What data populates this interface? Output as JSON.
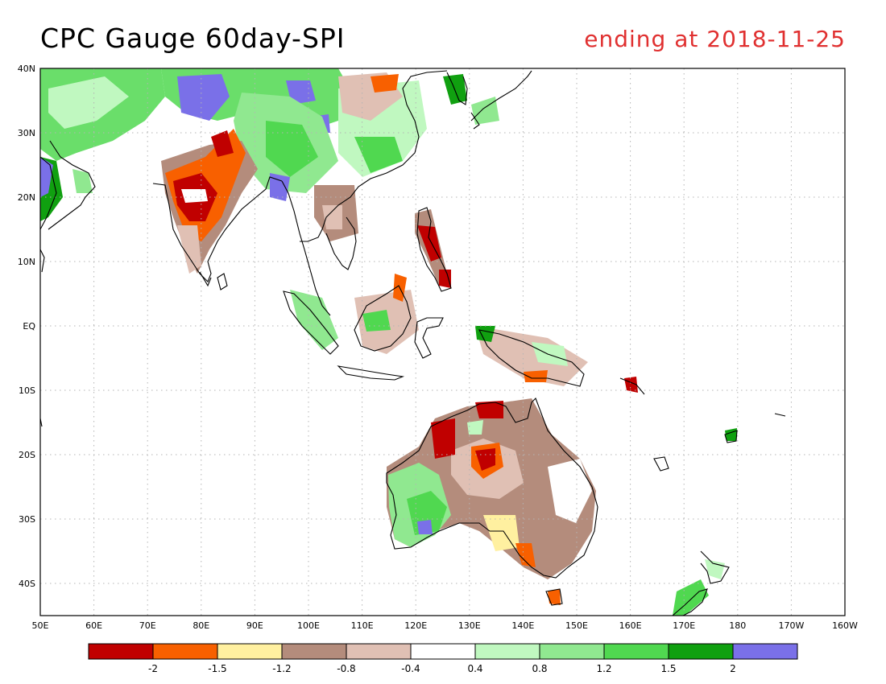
{
  "title": "CPC Gauge 60day-SPI",
  "subtitle": "ending at 2018-11-25",
  "colors": {
    "title": "#000000",
    "subtitle": "#e03030",
    "land_outline": "#000000",
    "grid": "#b4b4b4"
  },
  "chart_data": {
    "type": "heatmap",
    "x_labels": [
      "50E",
      "60E",
      "70E",
      "80E",
      "90E",
      "100E",
      "110E",
      "120E",
      "130E",
      "140E",
      "150E",
      "160E",
      "170E",
      "180",
      "170W",
      "160W"
    ],
    "y_labels": [
      "40N",
      "30N",
      "20N",
      "10N",
      "EQ",
      "10S",
      "20S",
      "30S",
      "40S"
    ],
    "xlim": [
      "50E",
      "160W"
    ],
    "ylim": [
      "45S",
      "40N"
    ],
    "grid": "dotted",
    "legend": {
      "placement": "bottom",
      "colors": [
        "#c00000",
        "#f86000",
        "#fff0a0",
        "#b48c7c",
        "#e0c0b4",
        "#ffffff",
        "#c0f8c0",
        "#90e890",
        "#50d850",
        "#10a010",
        "#7a70e8"
      ],
      "labels": [
        "-2",
        "-1.5",
        "-1.2",
        "-0.8",
        "-0.4",
        "0.4",
        "0.8",
        "1.2",
        "1.5",
        "2"
      ]
    }
  }
}
